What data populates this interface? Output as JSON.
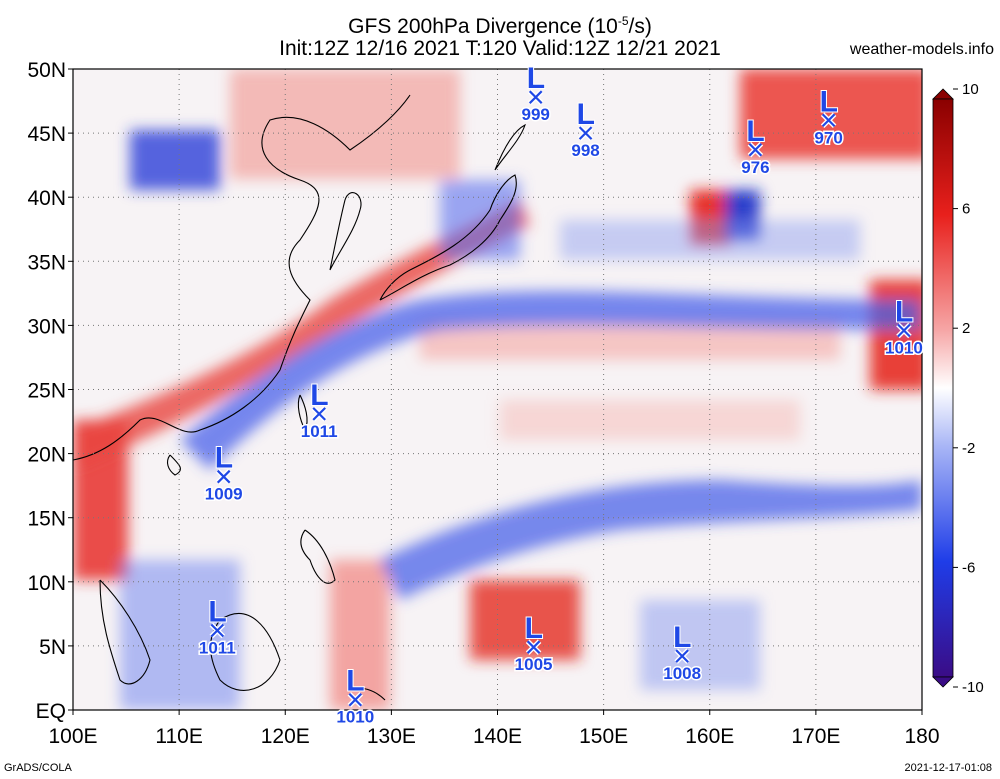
{
  "title_line1": "GFS 200hPa Divergence (10",
  "title_exp": "-5",
  "title_unit_tail": "/s)",
  "title_line2": "Init:12Z 12/16 2021 T:120 Valid:12Z 12/21 2021",
  "site": "weather-models.info",
  "footer_left": "GrADS/COLA",
  "footer_right": "2021-12-17-01:08",
  "map": {
    "lon_range": [
      100,
      180
    ],
    "lat_range": [
      0,
      50
    ],
    "lon_ticks": [
      "100E",
      "110E",
      "120E",
      "130E",
      "140E",
      "150E",
      "160E",
      "170E",
      "180"
    ],
    "lat_ticks": [
      "EQ",
      "5N",
      "10N",
      "15N",
      "20N",
      "25N",
      "30N",
      "35N",
      "40N",
      "45N",
      "50N"
    ],
    "gridlines": "dotted",
    "colors": {
      "positive": "#e8201c",
      "negative": "#1f3de8",
      "neutral": "#ffffff",
      "lows": "#1f48e6",
      "coast": "#000000"
    }
  },
  "colorbar": {
    "min": -10,
    "max": 10,
    "labels": [
      "10",
      "6",
      "2",
      "-2",
      "-6",
      "-10"
    ]
  },
  "lows": [
    {
      "symbol": "L",
      "label": "999",
      "lon": 143.6,
      "lat": 47.8
    },
    {
      "symbol": "L",
      "label": "998",
      "lon": 148.3,
      "lat": 45.0
    },
    {
      "symbol": "L",
      "label": "976",
      "lon": 164.3,
      "lat": 43.7
    },
    {
      "symbol": "L",
      "label": "970",
      "lon": 171.2,
      "lat": 46.0
    },
    {
      "symbol": "L",
      "label": "1010",
      "lon": 178.3,
      "lat": 29.6
    },
    {
      "symbol": "L",
      "label": "1011",
      "lon": 123.2,
      "lat": 23.1
    },
    {
      "symbol": "L",
      "label": "1009",
      "lon": 114.2,
      "lat": 18.2
    },
    {
      "symbol": "L",
      "label": "1011",
      "lon": 113.6,
      "lat": 6.2
    },
    {
      "symbol": "L",
      "label": "1005",
      "lon": 143.4,
      "lat": 4.9
    },
    {
      "symbol": "L",
      "label": "1008",
      "lon": 157.4,
      "lat": 4.2
    },
    {
      "symbol": "L",
      "label": "1010",
      "lon": 126.6,
      "lat": 0.8
    }
  ]
}
